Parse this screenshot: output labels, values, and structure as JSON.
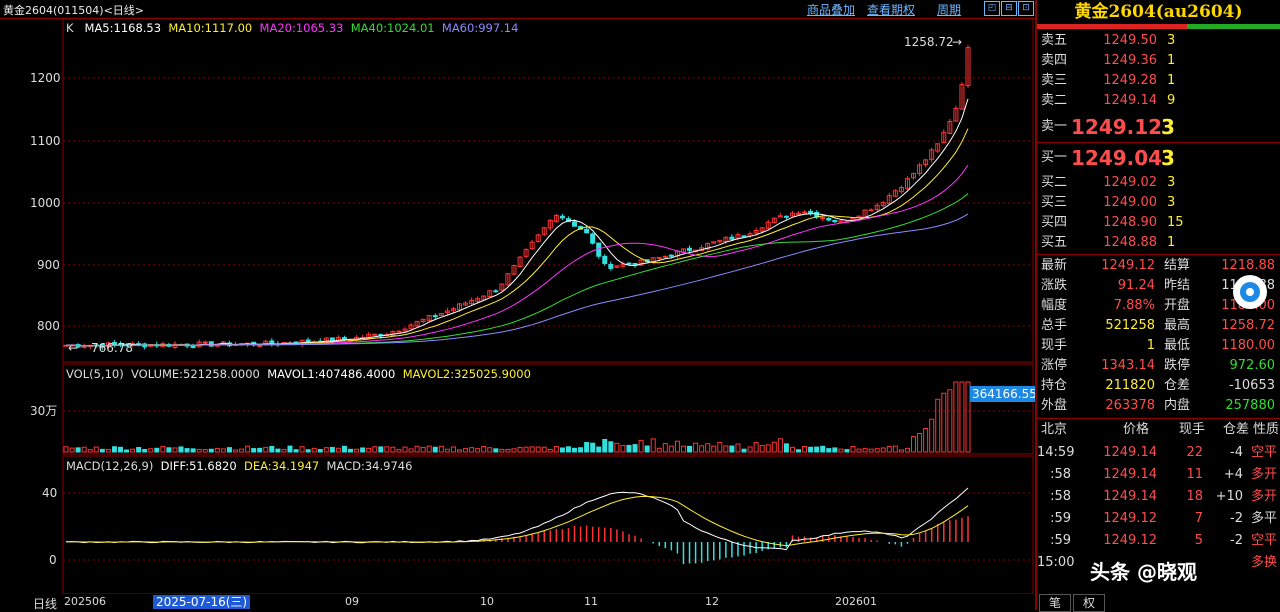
{
  "topbar": {
    "title": "黄金2604(011504)<日线>",
    "links": [
      "商品叠加",
      "查看期权",
      "周期"
    ],
    "win_buttons": [
      "◰",
      "⊟",
      "⊡"
    ]
  },
  "main_panel": {
    "ma_prefix": "K",
    "ma": [
      {
        "label": "MA5:1168.53",
        "color": "#ffffff"
      },
      {
        "label": "MA10:1117.00",
        "color": "#ffee33"
      },
      {
        "label": "MA20:1065.33",
        "color": "#ff33ff"
      },
      {
        "label": "MA40:1024.01",
        "color": "#33dd33"
      },
      {
        "label": "MA60:997.14",
        "color": "#8a8aff"
      }
    ],
    "high_label": "1258.72",
    "low_label": "766.78",
    "y_ticks": [
      "1200",
      "1100",
      "1000",
      "900",
      "800"
    ]
  },
  "vol_panel": {
    "header": [
      {
        "label": "VOL(5,10)",
        "color": "#dddddd"
      },
      {
        "label": "VOLUME:521258.0000",
        "color": "#dddddd"
      },
      {
        "label": "MAVOL1:407486.4000",
        "color": "#ffffff"
      },
      {
        "label": "MAVOL2:325025.9000",
        "color": "#ffee33"
      }
    ],
    "y_tick": "30万",
    "cursor_value": "364166.55"
  },
  "macd_panel": {
    "header": [
      {
        "label": "MACD(12,26,9)",
        "color": "#dddddd"
      },
      {
        "label": "DIFF:51.6820",
        "color": "#ffffff"
      },
      {
        "label": "DEA:34.1947",
        "color": "#ffee33"
      },
      {
        "label": "MACD:34.9746",
        "color": "#dddddd"
      }
    ],
    "y_ticks": [
      "40",
      "0"
    ]
  },
  "x_axis": {
    "period": "日线",
    "labels": [
      "202506",
      "09",
      "10",
      "11",
      "12",
      "202601"
    ],
    "cursor_date": "2025-07-16(三)"
  },
  "quote": {
    "contract": "黄金2604(au2604)",
    "asks": [
      {
        "label": "卖五",
        "price": "1249.50",
        "vol": "3"
      },
      {
        "label": "卖四",
        "price": "1249.36",
        "vol": "1"
      },
      {
        "label": "卖三",
        "price": "1249.28",
        "vol": "1"
      },
      {
        "label": "卖二",
        "price": "1249.14",
        "vol": "9"
      },
      {
        "label": "卖一",
        "price": "1249.12",
        "vol": "3"
      }
    ],
    "bids": [
      {
        "label": "买一",
        "price": "1249.04",
        "vol": "3"
      },
      {
        "label": "买二",
        "price": "1249.02",
        "vol": "3"
      },
      {
        "label": "买三",
        "price": "1249.00",
        "vol": "3"
      },
      {
        "label": "买四",
        "price": "1248.90",
        "vol": "15"
      },
      {
        "label": "买五",
        "price": "1248.88",
        "vol": "1"
      }
    ],
    "stats": [
      {
        "l1": "最新",
        "v1": "1249.12",
        "c1": "red",
        "l2": "结算",
        "v2": "1218.88",
        "c2": "red"
      },
      {
        "l1": "涨跌",
        "v1": "91.24",
        "c1": "red",
        "l2": "昨结",
        "v2": "1157.88",
        "c2": "lbl"
      },
      {
        "l1": "幅度",
        "v1": "7.88%",
        "c1": "red",
        "l2": "开盘",
        "v2": "1180.00",
        "c2": "red"
      },
      {
        "l1": "总手",
        "v1": "521258",
        "c1": "yellow",
        "l2": "最高",
        "v2": "1258.72",
        "c2": "red"
      },
      {
        "l1": "现手",
        "v1": "1",
        "c1": "yellow",
        "l2": "最低",
        "v2": "1180.00",
        "c2": "red"
      },
      {
        "l1": "涨停",
        "v1": "1343.14",
        "c1": "red",
        "l2": "跌停",
        "v2": "972.60",
        "c2": "green"
      },
      {
        "l1": "持仓",
        "v1": "211820",
        "c1": "yellow",
        "l2": "仓差",
        "v2": "-10653",
        "c2": "lbl"
      },
      {
        "l1": "外盘",
        "v1": "263378",
        "c1": "red",
        "l2": "内盘",
        "v2": "257880",
        "c2": "green"
      }
    ],
    "ticks_header": [
      "北京",
      "价格",
      "现手",
      "仓差",
      "性质"
    ],
    "ticks": [
      {
        "time": "14:59",
        "price": "1249.14",
        "vol": "22",
        "diff": "-4",
        "nature": "空平",
        "ncolor": "red"
      },
      {
        "time": ":58",
        "price": "1249.14",
        "vol": "11",
        "diff": "+4",
        "nature": "多开",
        "ncolor": "red"
      },
      {
        "time": ":58",
        "price": "1249.14",
        "vol": "18",
        "diff": "+10",
        "nature": "多开",
        "ncolor": "red"
      },
      {
        "time": ":59",
        "price": "1249.12",
        "vol": "7",
        "diff": "-2",
        "nature": "多平",
        "ncolor": "lbl"
      },
      {
        "time": ":59",
        "price": "1249.12",
        "vol": "5",
        "diff": "-2",
        "nature": "空平",
        "ncolor": "red"
      },
      {
        "time": "15:00",
        "price": "",
        "vol": "",
        "diff": "",
        "nature": "多换",
        "ncolor": "red"
      }
    ],
    "tabs": [
      "笔",
      "权"
    ]
  },
  "watermark": "头条 @晓观",
  "colors": {
    "border": "#8b0000",
    "up": "#ff3333",
    "down": "#33e0e0",
    "accent": "#1e88e5"
  }
}
